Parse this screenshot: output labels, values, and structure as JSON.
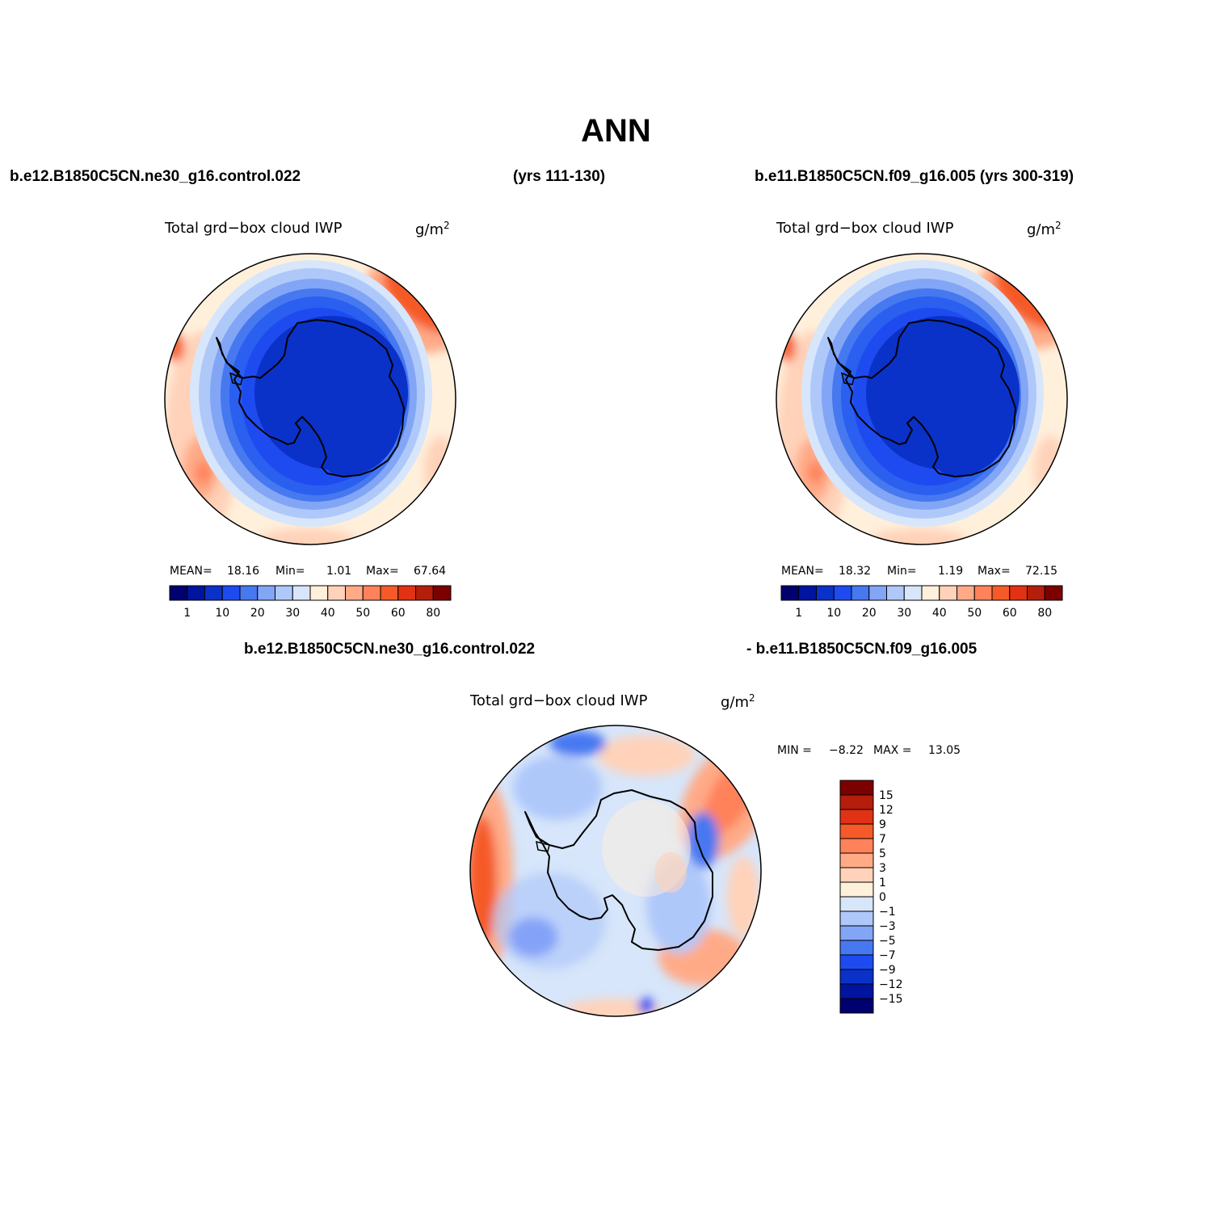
{
  "title": "ANN",
  "panels": {
    "top_left": {
      "case": "b.e12.B1850C5CN.ne30_g16.control.022",
      "years": "(yrs 111-130)",
      "variable": "Total grd−box cloud IWP",
      "units": "g/m",
      "units_exp": "2",
      "stats": {
        "mean_label": "MEAN=",
        "mean": "18.16",
        "min_label": "Min=",
        "min": "1.01",
        "max_label": "Max=",
        "max": "67.64"
      }
    },
    "top_right": {
      "case": "b.e11.B1850C5CN.f09_g16.005 (yrs 300-319)",
      "variable": "Total grd−box cloud IWP",
      "units": "g/m",
      "units_exp": "2",
      "stats": {
        "mean_label": "MEAN=",
        "mean": "18.32",
        "min_label": "Min=",
        "min": "1.19",
        "max_label": "Max=",
        "max": "72.15"
      }
    },
    "bottom": {
      "case_a": "b.e12.B1850C5CN.ne30_g16.control.022",
      "case_b": "- b.e11.B1850C5CN.f09_g16.005",
      "variable": "Total grd−box cloud IWP",
      "units": "g/m",
      "units_exp": "2",
      "stats": {
        "min_label": "MIN =",
        "min": "−8.22",
        "max_label": "MAX =",
        "max": "13.05"
      }
    }
  },
  "colorbar_top": {
    "colors": [
      "#00006e",
      "#0014a0",
      "#0a32c8",
      "#1e4bf0",
      "#4678f0",
      "#82a5f5",
      "#afc8fa",
      "#d7e6fa",
      "#fff0dc",
      "#ffd2b9",
      "#ffaa87",
      "#ff825a",
      "#f55a28",
      "#e13214",
      "#b41e0a",
      "#7d0000"
    ],
    "ticks": [
      {
        "label": "1",
        "boundary": 1
      },
      {
        "label": "10",
        "boundary": 3
      },
      {
        "label": "20",
        "boundary": 5
      },
      {
        "label": "30",
        "boundary": 7
      },
      {
        "label": "40",
        "boundary": 9
      },
      {
        "label": "50",
        "boundary": 11
      },
      {
        "label": "60",
        "boundary": 13
      },
      {
        "label": "80",
        "boundary": 15
      }
    ]
  },
  "colorbar_diff": {
    "colors": [
      "#7d0000",
      "#b41e0a",
      "#e13214",
      "#f55a28",
      "#ff825a",
      "#ffaa87",
      "#ffd2b9",
      "#fff0dc",
      "#d7e6fa",
      "#afc8fa",
      "#82a5f5",
      "#4678f0",
      "#1e4bf0",
      "#0a32c8",
      "#0014a0",
      "#00006e"
    ],
    "labels": [
      "15",
      "12",
      "9",
      "7",
      "5",
      "3",
      "1",
      "0",
      "−1",
      "−3",
      "−5",
      "−7",
      "−9",
      "−12",
      "−15"
    ]
  },
  "map_colors": {
    "c1": "#0a32c8",
    "c2": "#1e4bf0",
    "c3": "#2a5ff0",
    "c4": "#4678f0",
    "c5": "#82a5f5",
    "c6": "#afc8fa",
    "c7": "#d7e6fa",
    "w1": "#fff0dc",
    "w2": "#ffd2b9",
    "w3": "#ffaa87",
    "w4": "#ff825a",
    "w5": "#f55a28",
    "w6": "#e13214"
  }
}
